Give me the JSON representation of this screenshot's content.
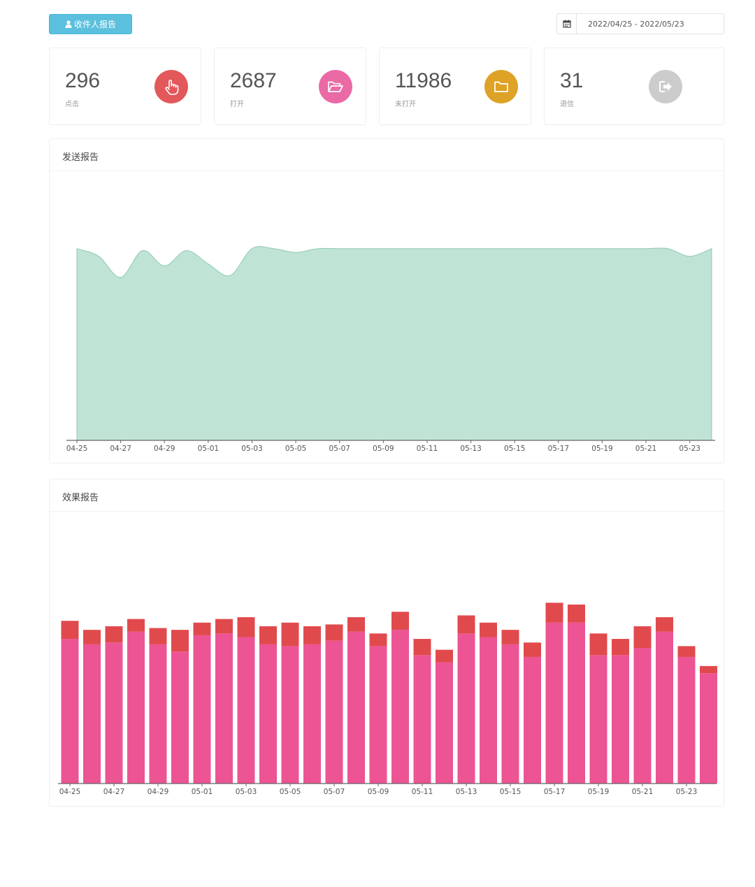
{
  "header": {
    "recipient_report_button": "收件人报告",
    "date_range": "2022/04/25 - 2022/05/23"
  },
  "stats": [
    {
      "value": "296",
      "label": "点击",
      "color": "#e3585a",
      "icon": "hand-pointer-icon"
    },
    {
      "value": "2687",
      "label": "打开",
      "color": "#ea6aa5",
      "icon": "folder-open-icon"
    },
    {
      "value": "11986",
      "label": "未打开",
      "color": "#dea227",
      "icon": "folder-icon"
    },
    {
      "value": "31",
      "label": "退信",
      "color": "#cccccc",
      "icon": "sign-out-icon"
    }
  ],
  "send_report": {
    "title": "发送报告"
  },
  "effect_report": {
    "title": "效果报告"
  },
  "chart_data": [
    {
      "type": "area",
      "title": "发送报告",
      "x": [
        "04-25",
        "04-26",
        "04-27",
        "04-28",
        "04-29",
        "04-30",
        "05-01",
        "05-02",
        "05-03",
        "05-04",
        "05-05",
        "05-06",
        "05-07",
        "05-08",
        "05-09",
        "05-10",
        "05-11",
        "05-12",
        "05-13",
        "05-14",
        "05-15",
        "05-16",
        "05-17",
        "05-18",
        "05-19",
        "05-20",
        "05-21",
        "05-22",
        "05-23",
        "05-24"
      ],
      "x_tick_labels": [
        "04-25",
        "04-27",
        "04-29",
        "05-01",
        "05-03",
        "05-05",
        "05-07",
        "05-09",
        "05-11",
        "05-13",
        "05-15",
        "05-17",
        "05-19",
        "05-21",
        "05-23"
      ],
      "series": [
        {
          "values": [
            100,
            96,
            85,
            99,
            91,
            99,
            92,
            86,
            100,
            100,
            98,
            100,
            100,
            100,
            100,
            100,
            100,
            100,
            100,
            100,
            100,
            100,
            100,
            100,
            100,
            100,
            100,
            100,
            96,
            100
          ],
          "color": "#bfe4d5"
        }
      ],
      "ylim": [
        0,
        140
      ],
      "grid": false
    },
    {
      "type": "bar",
      "stacked": true,
      "title": "效果报告",
      "categories": [
        "04-25",
        "04-26",
        "04-27",
        "04-28",
        "04-29",
        "04-30",
        "05-01",
        "05-02",
        "05-03",
        "05-04",
        "05-05",
        "05-06",
        "05-07",
        "05-08",
        "05-09",
        "05-10",
        "05-11",
        "05-12",
        "05-13",
        "05-14",
        "05-15",
        "05-16",
        "05-17",
        "05-18",
        "05-19",
        "05-20",
        "05-21",
        "05-22",
        "05-23",
        "05-24"
      ],
      "x_tick_labels": [
        "04-25",
        "04-27",
        "04-29",
        "05-01",
        "05-03",
        "05-05",
        "05-07",
        "05-09",
        "05-11",
        "05-13",
        "05-15",
        "05-17",
        "05-19",
        "05-21",
        "05-23"
      ],
      "series": [
        {
          "color": "#ec5494",
          "values": [
            80,
            77,
            78,
            84,
            77,
            73,
            82,
            83,
            81,
            77,
            76,
            77,
            79,
            84,
            76,
            85,
            71,
            67,
            83,
            81,
            77,
            70,
            89,
            89,
            71,
            71,
            75,
            84,
            70,
            61
          ]
        },
        {
          "color": "#e14a4c",
          "values": [
            10,
            8,
            9,
            7,
            9,
            12,
            7,
            8,
            11,
            10,
            13,
            10,
            9,
            8,
            7,
            10,
            9,
            7,
            10,
            8,
            8,
            8,
            11,
            10,
            12,
            9,
            12,
            8,
            6,
            4
          ]
        }
      ],
      "ylim": [
        0,
        150
      ],
      "grid": false
    }
  ]
}
